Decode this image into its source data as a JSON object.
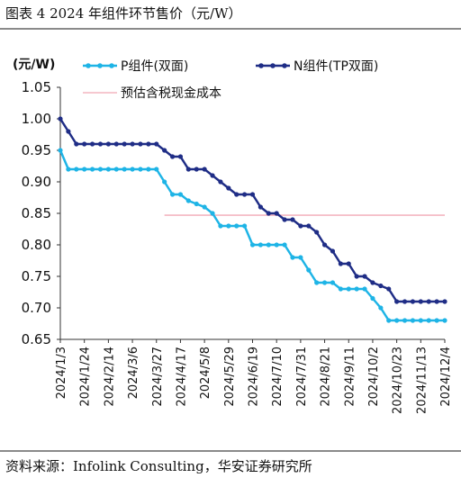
{
  "figure": {
    "title": "图表 4   2024 年组件环节售价（元/W）",
    "source": "资料来源：Infolink Consulting，华安证券研究所"
  },
  "chart_data": {
    "type": "line",
    "unit_label": "(元/W)",
    "ylim": [
      0.65,
      1.05
    ],
    "yticks": [
      "1.05",
      "1.00",
      "0.95",
      "0.90",
      "0.85",
      "0.80",
      "0.75",
      "0.70",
      "0.65"
    ],
    "grid": false,
    "legend_position": "top",
    "x": [
      "2024/1/3",
      "2024/1/10",
      "2024/1/17",
      "2024/1/24",
      "2024/1/31",
      "2024/2/7",
      "2024/2/14",
      "2024/2/21",
      "2024/2/28",
      "2024/3/6",
      "2024/3/13",
      "2024/3/20",
      "2024/3/27",
      "2024/4/3",
      "2024/4/10",
      "2024/4/17",
      "2024/4/24",
      "2024/5/1",
      "2024/5/8",
      "2024/5/15",
      "2024/5/22",
      "2024/5/29",
      "2024/6/5",
      "2024/6/12",
      "2024/6/19",
      "2024/6/26",
      "2024/7/3",
      "2024/7/10",
      "2024/7/17",
      "2024/7/24",
      "2024/7/31",
      "2024/8/7",
      "2024/8/14",
      "2024/8/21",
      "2024/8/28",
      "2024/9/4",
      "2024/9/11",
      "2024/9/18",
      "2024/9/25",
      "2024/10/2",
      "2024/10/9",
      "2024/10/16",
      "2024/10/23",
      "2024/10/30",
      "2024/11/6",
      "2024/11/13",
      "2024/11/20",
      "2024/11/27",
      "2024/12/4"
    ],
    "xtick_labels": [
      "2024/1/3",
      "2024/1/24",
      "2024/2/14",
      "2024/3/6",
      "2024/3/27",
      "2024/4/17",
      "2024/5/8",
      "2024/5/29",
      "2024/6/19",
      "2024/7/10",
      "2024/7/31",
      "2024/8/21",
      "2024/9/11",
      "2024/10/2",
      "2024/10/23",
      "2024/11/13",
      "2024/12/4"
    ],
    "series": [
      {
        "name": "P组件(双面)",
        "color": "#1EB4E6",
        "values": [
          0.95,
          0.92,
          0.92,
          0.92,
          0.92,
          0.92,
          0.92,
          0.92,
          0.92,
          0.92,
          0.92,
          0.92,
          0.92,
          0.9,
          0.88,
          0.88,
          0.87,
          0.865,
          0.86,
          0.85,
          0.83,
          0.83,
          0.83,
          0.83,
          0.8,
          0.8,
          0.8,
          0.8,
          0.8,
          0.78,
          0.78,
          0.76,
          0.74,
          0.74,
          0.74,
          0.73,
          0.73,
          0.73,
          0.73,
          0.715,
          0.7,
          0.68,
          0.68,
          0.68,
          0.68,
          0.68,
          0.68,
          0.68,
          0.68
        ]
      },
      {
        "name": "N组件(TP双面)",
        "color": "#1F2D86",
        "values": [
          1.0,
          0.98,
          0.96,
          0.96,
          0.96,
          0.96,
          0.96,
          0.96,
          0.96,
          0.96,
          0.96,
          0.96,
          0.96,
          0.95,
          0.94,
          0.94,
          0.92,
          0.92,
          0.92,
          0.91,
          0.9,
          0.89,
          0.88,
          0.88,
          0.88,
          0.86,
          0.85,
          0.85,
          0.84,
          0.84,
          0.83,
          0.83,
          0.82,
          0.8,
          0.79,
          0.77,
          0.77,
          0.75,
          0.75,
          0.74,
          0.735,
          0.73,
          0.71,
          0.71,
          0.71,
          0.71,
          0.71,
          0.71,
          0.71
        ]
      }
    ],
    "reference_line": {
      "name": "预估含税现金成本",
      "color": "#F4B6C0",
      "value": 0.847,
      "x_start": "2024/4/3",
      "x_end": "2024/12/4"
    }
  }
}
